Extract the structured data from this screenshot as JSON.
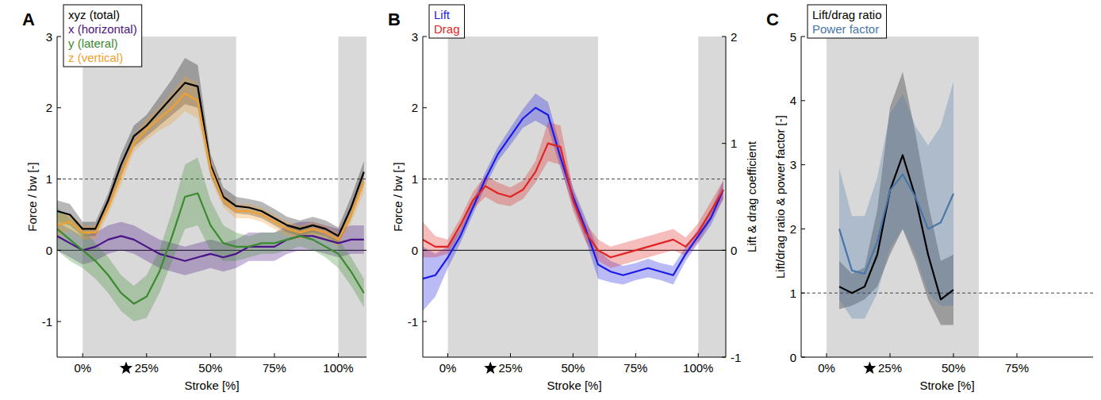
{
  "chart_data": [
    {
      "type": "line",
      "panel": "A",
      "x_label": "Stroke [%]",
      "y_label": "Force / bw [-]",
      "xlim": [
        -10,
        111
      ],
      "ylim": [
        -1.5,
        3
      ],
      "xticks": [
        {
          "value": 0,
          "label": "0%"
        },
        {
          "value": 25,
          "label": "25%"
        },
        {
          "value": 50,
          "label": "50%"
        },
        {
          "value": 75,
          "label": "75%"
        },
        {
          "value": 100,
          "label": "100%"
        }
      ],
      "yticks": [
        -1,
        0,
        1,
        2,
        3
      ],
      "shaded_ranges": [
        [
          0,
          60
        ],
        [
          100,
          111
        ]
      ],
      "reference_lines": [
        {
          "value": 1,
          "line_style": "dashed"
        },
        {
          "value": 0,
          "line_style": "solid"
        }
      ],
      "star": 17,
      "legend": "upper left",
      "x": [
        -10,
        -5,
        0,
        5,
        10,
        15,
        20,
        25,
        30,
        35,
        40,
        45,
        50,
        55,
        60,
        65,
        70,
        75,
        80,
        85,
        90,
        95,
        100,
        105,
        110
      ],
      "series": [
        {
          "name": "xyz (total)",
          "color": "#000000",
          "values": [
            0.55,
            0.5,
            0.3,
            0.3,
            0.7,
            1.2,
            1.6,
            1.75,
            1.95,
            2.15,
            2.35,
            2.3,
            1.2,
            0.75,
            0.62,
            0.6,
            0.55,
            0.45,
            0.35,
            0.3,
            0.35,
            0.3,
            0.2,
            0.6,
            1.1
          ],
          "lower": [
            0.4,
            0.35,
            0.2,
            0.2,
            0.6,
            1.05,
            1.45,
            1.6,
            1.75,
            1.9,
            2.05,
            2.0,
            1.05,
            0.65,
            0.52,
            0.5,
            0.45,
            0.35,
            0.25,
            0.2,
            0.25,
            0.2,
            0.1,
            0.45,
            0.95
          ],
          "upper": [
            0.7,
            0.65,
            0.4,
            0.4,
            0.8,
            1.35,
            1.75,
            1.9,
            2.15,
            2.4,
            2.7,
            2.6,
            1.35,
            0.88,
            0.75,
            0.72,
            0.68,
            0.58,
            0.47,
            0.42,
            0.47,
            0.42,
            0.32,
            0.75,
            1.25
          ]
        },
        {
          "name": "x (horizontal)",
          "color": "#4a1486",
          "values": [
            0.2,
            0.1,
            0.0,
            0.05,
            0.15,
            0.2,
            0.15,
            0.05,
            -0.05,
            -0.1,
            -0.15,
            -0.1,
            -0.05,
            -0.1,
            -0.05,
            0.05,
            0.05,
            0.05,
            0.15,
            0.2,
            0.2,
            0.15,
            0.1,
            0.15,
            0.15
          ],
          "lower": [
            0.0,
            -0.1,
            -0.2,
            -0.15,
            -0.05,
            0.0,
            -0.05,
            -0.15,
            -0.25,
            -0.3,
            -0.35,
            -0.3,
            -0.25,
            -0.3,
            -0.25,
            -0.15,
            -0.15,
            -0.15,
            -0.05,
            0.0,
            0.0,
            -0.05,
            -0.1,
            -0.05,
            -0.05
          ],
          "upper": [
            0.4,
            0.3,
            0.2,
            0.25,
            0.35,
            0.4,
            0.35,
            0.25,
            0.15,
            0.1,
            0.05,
            0.1,
            0.15,
            0.1,
            0.15,
            0.25,
            0.25,
            0.25,
            0.35,
            0.4,
            0.4,
            0.35,
            0.3,
            0.35,
            0.35
          ]
        },
        {
          "name": "y (lateral)",
          "color": "#3a8a2e",
          "values": [
            0.3,
            0.15,
            0.0,
            -0.15,
            -0.35,
            -0.6,
            -0.75,
            -0.65,
            -0.3,
            0.2,
            0.75,
            0.8,
            0.35,
            0.1,
            0.05,
            0.05,
            0.1,
            0.1,
            0.15,
            0.2,
            0.15,
            0.05,
            -0.05,
            -0.3,
            -0.6
          ],
          "lower": [
            0.0,
            -0.15,
            -0.25,
            -0.4,
            -0.6,
            -0.85,
            -1.0,
            -0.95,
            -0.6,
            -0.15,
            0.3,
            0.35,
            0.0,
            -0.15,
            -0.15,
            -0.1,
            -0.05,
            -0.05,
            0.0,
            0.05,
            0.0,
            -0.1,
            -0.25,
            -0.5,
            -0.8
          ],
          "upper": [
            0.6,
            0.45,
            0.3,
            0.1,
            -0.1,
            -0.35,
            -0.5,
            -0.35,
            0.0,
            0.55,
            1.2,
            1.3,
            0.7,
            0.35,
            0.25,
            0.2,
            0.25,
            0.25,
            0.3,
            0.35,
            0.3,
            0.2,
            0.15,
            -0.1,
            -0.4
          ]
        },
        {
          "name": "z (vertical)",
          "color": "#f0a030",
          "values": [
            0.35,
            0.4,
            0.25,
            0.25,
            0.6,
            1.05,
            1.5,
            1.7,
            1.85,
            2.0,
            2.2,
            2.1,
            1.15,
            0.7,
            0.55,
            0.55,
            0.5,
            0.4,
            0.3,
            0.25,
            0.3,
            0.25,
            0.15,
            0.5,
            0.95
          ],
          "lower": [
            0.2,
            0.28,
            0.15,
            0.15,
            0.5,
            0.92,
            1.38,
            1.55,
            1.68,
            1.78,
            1.95,
            1.85,
            1.0,
            0.6,
            0.45,
            0.45,
            0.4,
            0.3,
            0.2,
            0.15,
            0.2,
            0.15,
            0.05,
            0.38,
            0.82
          ],
          "upper": [
            0.5,
            0.52,
            0.35,
            0.35,
            0.7,
            1.18,
            1.62,
            1.85,
            2.02,
            2.22,
            2.45,
            2.35,
            1.3,
            0.8,
            0.65,
            0.65,
            0.6,
            0.5,
            0.4,
            0.35,
            0.4,
            0.35,
            0.25,
            0.62,
            1.08
          ]
        }
      ]
    },
    {
      "type": "line",
      "panel": "B",
      "x_label": "Stroke [%]",
      "y_label": "Force / bw [-]",
      "y2_label": "Lift & drag coefficient",
      "xlim": [
        -10,
        111
      ],
      "ylim": [
        -1.5,
        3
      ],
      "y2lim": [
        -1,
        2
      ],
      "xticks": [
        {
          "value": 0,
          "label": "0%"
        },
        {
          "value": 25,
          "label": "25%"
        },
        {
          "value": 50,
          "label": "50%"
        },
        {
          "value": 75,
          "label": "75%"
        },
        {
          "value": 100,
          "label": "100%"
        }
      ],
      "yticks": [
        -1,
        0,
        1,
        2,
        3
      ],
      "y2ticks": [
        -1,
        0,
        1,
        2
      ],
      "shaded_ranges": [
        [
          0,
          60
        ],
        [
          100,
          111
        ]
      ],
      "reference_lines": [
        {
          "value": 1,
          "line_style": "dashed"
        },
        {
          "value": 0,
          "line_style": "solid"
        }
      ],
      "star": 17,
      "legend": "upper left",
      "x": [
        -10,
        -5,
        0,
        5,
        10,
        15,
        20,
        25,
        30,
        35,
        40,
        45,
        50,
        55,
        60,
        65,
        70,
        75,
        80,
        85,
        90,
        95,
        100,
        105,
        110
      ],
      "series": [
        {
          "name": "Lift",
          "color": "#1a1ae6",
          "values": [
            -0.4,
            -0.35,
            -0.1,
            0.2,
            0.6,
            1.0,
            1.35,
            1.6,
            1.85,
            2.0,
            1.9,
            1.3,
            0.75,
            0.3,
            -0.2,
            -0.3,
            -0.35,
            -0.3,
            -0.25,
            -0.3,
            -0.35,
            -0.05,
            0.2,
            0.45,
            0.85
          ],
          "lower": [
            -0.85,
            -0.65,
            -0.25,
            0.1,
            0.5,
            0.9,
            1.25,
            1.48,
            1.72,
            1.82,
            1.72,
            1.15,
            0.62,
            0.15,
            -0.4,
            -0.45,
            -0.48,
            -0.42,
            -0.38,
            -0.42,
            -0.48,
            -0.15,
            0.1,
            0.35,
            0.72
          ],
          "upper": [
            0.05,
            -0.05,
            0.05,
            0.3,
            0.7,
            1.1,
            1.45,
            1.72,
            1.98,
            2.2,
            2.08,
            1.45,
            0.88,
            0.45,
            0.0,
            -0.15,
            -0.22,
            -0.18,
            -0.12,
            -0.18,
            -0.22,
            0.05,
            0.3,
            0.55,
            0.98
          ]
        },
        {
          "name": "Drag",
          "color": "#e02424",
          "values": [
            0.15,
            0.05,
            0.05,
            0.35,
            0.7,
            0.9,
            0.8,
            0.75,
            0.85,
            1.1,
            1.5,
            1.45,
            0.7,
            0.25,
            0.0,
            -0.1,
            -0.05,
            0.0,
            0.05,
            0.1,
            0.15,
            0.05,
            0.25,
            0.55,
            0.85
          ],
          "lower": [
            -0.1,
            -0.1,
            -0.05,
            0.25,
            0.58,
            0.75,
            0.65,
            0.62,
            0.72,
            0.95,
            1.25,
            1.2,
            0.55,
            0.12,
            -0.15,
            -0.25,
            -0.2,
            -0.15,
            -0.1,
            -0.05,
            0.0,
            -0.08,
            0.12,
            0.42,
            0.72
          ],
          "upper": [
            0.4,
            0.2,
            0.15,
            0.45,
            0.82,
            1.05,
            0.95,
            0.88,
            0.98,
            1.25,
            1.8,
            1.75,
            0.85,
            0.38,
            0.15,
            0.05,
            0.1,
            0.15,
            0.2,
            0.25,
            0.3,
            0.18,
            0.38,
            0.68,
            0.98
          ]
        }
      ]
    },
    {
      "type": "line",
      "panel": "C",
      "x_label": "Stroke [%]",
      "y_label": "Lift/drag ratio & power factor [-]",
      "xlim": [
        -10,
        105
      ],
      "ylim": [
        0,
        5
      ],
      "xticks": [
        {
          "value": 0,
          "label": "0%"
        },
        {
          "value": 25,
          "label": "25%"
        },
        {
          "value": 50,
          "label": "50%"
        },
        {
          "value": 75,
          "label": "75%"
        }
      ],
      "yticks": [
        0,
        1,
        2,
        3,
        4,
        5
      ],
      "shaded_ranges": [
        [
          0,
          60
        ]
      ],
      "reference_lines": [
        {
          "value": 1,
          "line_style": "dashed"
        }
      ],
      "star": 17,
      "legend": "upper left",
      "x": [
        5,
        10,
        15,
        20,
        25,
        30,
        35,
        40,
        45,
        50
      ],
      "series": [
        {
          "name": "Lift/drag ratio",
          "color": "#000000",
          "values": [
            1.1,
            1.0,
            1.1,
            1.6,
            2.6,
            3.15,
            2.5,
            1.6,
            0.9,
            1.05
          ],
          "lower": [
            0.75,
            0.8,
            0.9,
            1.1,
            1.6,
            2.0,
            1.5,
            0.9,
            0.5,
            0.5
          ],
          "upper": [
            1.5,
            1.3,
            1.4,
            2.3,
            3.9,
            4.45,
            3.5,
            2.4,
            1.5,
            1.6
          ]
        },
        {
          "name": "Power factor",
          "color": "#4a76a8",
          "values": [
            2.0,
            1.35,
            1.3,
            1.8,
            2.6,
            2.85,
            2.5,
            2.0,
            2.1,
            2.55
          ],
          "lower": [
            0.9,
            0.6,
            0.6,
            1.0,
            1.7,
            2.0,
            1.6,
            1.0,
            0.8,
            0.8
          ],
          "upper": [
            2.95,
            2.2,
            2.2,
            2.8,
            3.8,
            4.1,
            3.6,
            3.3,
            3.6,
            4.3
          ]
        }
      ]
    }
  ]
}
